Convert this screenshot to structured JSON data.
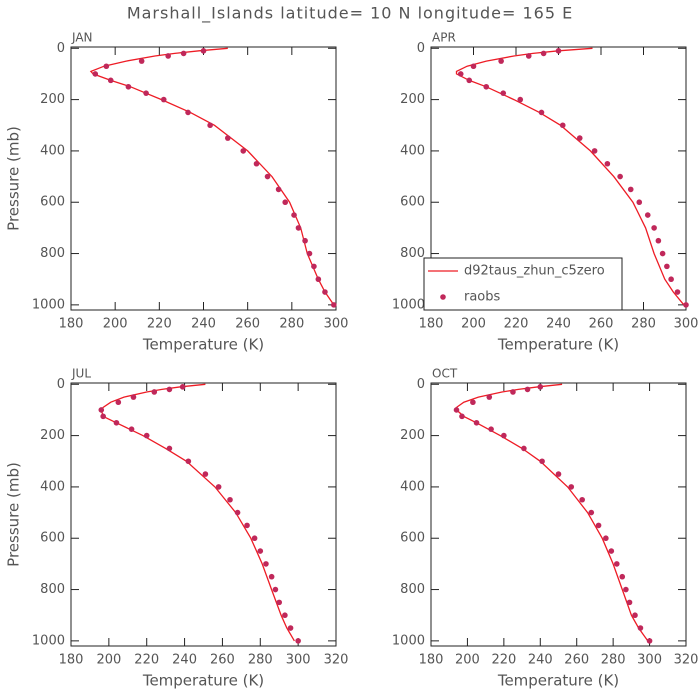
{
  "title": "Marshall_Islands  latitude= 10 N longitude= 165 E",
  "chart_data": [
    {
      "type": "line",
      "panel_label": "JAN",
      "xlabel": "Temperature (K)",
      "ylabel": "Pressure (mb)",
      "xlim": [
        180,
        300
      ],
      "xticks": [
        180,
        200,
        220,
        240,
        260,
        280,
        300
      ],
      "ylim": [
        -5,
        1020
      ],
      "yticks": [
        0,
        200,
        400,
        600,
        800,
        1000
      ],
      "y_reversed": true,
      "series": [
        {
          "mode": "line",
          "color": "#ee1c25",
          "x": [
            251,
            238,
            227,
            218,
            205,
            195,
            189,
            190,
            198,
            207,
            221,
            234,
            245,
            260,
            271,
            279,
            284,
            287,
            292,
            295,
            299
          ],
          "values": [
            0,
            10,
            20,
            30,
            50,
            70,
            90,
            100,
            125,
            150,
            200,
            250,
            300,
            400,
            500,
            600,
            700,
            800,
            900,
            950,
            1000
          ]
        },
        {
          "mode": "markers",
          "color": "#c0285a",
          "x": [
            240,
            231,
            224,
            212,
            196,
            191,
            198,
            206,
            214,
            222,
            233,
            243,
            251,
            258,
            264,
            269,
            274,
            277,
            281,
            283,
            286,
            288,
            290,
            292,
            295,
            299
          ],
          "values": [
            10,
            20,
            30,
            50,
            70,
            100,
            125,
            150,
            175,
            200,
            250,
            300,
            350,
            400,
            450,
            500,
            550,
            600,
            650,
            700,
            750,
            800,
            850,
            900,
            950,
            1000
          ]
        }
      ]
    },
    {
      "type": "line",
      "panel_label": "APR",
      "xlabel": "Temperature (K)",
      "legend": "lower left",
      "xlim": [
        180,
        300
      ],
      "xticks": [
        180,
        200,
        220,
        240,
        260,
        280,
        300
      ],
      "ylim": [
        -5,
        1020
      ],
      "yticks": [
        0,
        200,
        400,
        600,
        800,
        1000
      ],
      "y_reversed": true,
      "series": [
        {
          "name": "d92taus_zhun_c5zero",
          "mode": "line",
          "color": "#ee1c25",
          "x": [
            256,
            240,
            228,
            219,
            206,
            197,
            192,
            192,
            198,
            206,
            219,
            231,
            241,
            255,
            266,
            275,
            281,
            285,
            290,
            294,
            299
          ],
          "values": [
            0,
            10,
            20,
            30,
            50,
            70,
            90,
            100,
            125,
            150,
            200,
            250,
            300,
            400,
            500,
            600,
            700,
            800,
            900,
            950,
            1000
          ]
        },
        {
          "name": "raobs",
          "mode": "markers",
          "color": "#c0285a",
          "x": [
            240,
            233,
            226,
            213,
            200,
            194,
            198,
            206,
            214,
            222,
            232,
            242,
            250,
            257,
            263,
            269,
            274,
            278,
            282,
            285,
            287,
            289,
            291,
            293,
            296,
            300
          ],
          "values": [
            10,
            20,
            30,
            50,
            70,
            100,
            125,
            150,
            175,
            200,
            250,
            300,
            350,
            400,
            450,
            500,
            550,
            600,
            650,
            700,
            750,
            800,
            850,
            900,
            950,
            1000
          ]
        }
      ]
    },
    {
      "type": "line",
      "panel_label": "JUL",
      "xlabel": "Temperature (K)",
      "ylabel": "Pressure (mb)",
      "xlim": [
        180,
        320
      ],
      "xticks": [
        180,
        200,
        220,
        240,
        260,
        280,
        300,
        320
      ],
      "ylim": [
        -5,
        1020
      ],
      "yticks": [
        0,
        200,
        400,
        600,
        800,
        1000
      ],
      "y_reversed": true,
      "series": [
        {
          "mode": "line",
          "color": "#ee1c25",
          "x": [
            251,
            238,
            228,
            220,
            208,
            201,
            197,
            196,
            197,
            204,
            218,
            230,
            241,
            256,
            267,
            275,
            281,
            286,
            291,
            294,
            298
          ],
          "values": [
            0,
            10,
            20,
            30,
            50,
            70,
            90,
            100,
            125,
            150,
            200,
            250,
            300,
            400,
            500,
            600,
            700,
            800,
            900,
            950,
            1000
          ]
        },
        {
          "mode": "markers",
          "color": "#c0285a",
          "x": [
            239,
            232,
            224,
            213,
            205,
            196,
            197,
            204,
            212,
            220,
            232,
            242,
            251,
            258,
            264,
            268,
            273,
            277,
            280,
            283,
            286,
            288,
            290,
            293,
            296,
            300
          ],
          "values": [
            10,
            20,
            30,
            50,
            70,
            100,
            125,
            150,
            175,
            200,
            250,
            300,
            350,
            400,
            450,
            500,
            550,
            600,
            650,
            700,
            750,
            800,
            850,
            900,
            950,
            1000
          ]
        }
      ]
    },
    {
      "type": "line",
      "panel_label": "OCT",
      "xlabel": "Temperature (K)",
      "xlim": [
        180,
        320
      ],
      "xticks": [
        180,
        200,
        220,
        240,
        260,
        280,
        300,
        320
      ],
      "ylim": [
        -5,
        1020
      ],
      "yticks": [
        0,
        200,
        400,
        600,
        800,
        1000
      ],
      "y_reversed": true,
      "series": [
        {
          "mode": "line",
          "color": "#ee1c25",
          "x": [
            252,
            239,
            228,
            219,
            206,
            198,
            194,
            194,
            198,
            205,
            218,
            230,
            240,
            255,
            266,
            274,
            280,
            285,
            290,
            294,
            299
          ],
          "values": [
            0,
            10,
            20,
            30,
            50,
            70,
            90,
            100,
            125,
            150,
            200,
            250,
            300,
            400,
            500,
            600,
            700,
            800,
            900,
            950,
            1000
          ]
        },
        {
          "mode": "markers",
          "color": "#c0285a",
          "x": [
            240,
            233,
            225,
            212,
            203,
            194,
            197,
            205,
            213,
            220,
            231,
            241,
            250,
            257,
            263,
            268,
            272,
            276,
            279,
            282,
            285,
            287,
            289,
            292,
            295,
            300
          ],
          "values": [
            10,
            20,
            30,
            50,
            70,
            100,
            125,
            150,
            175,
            200,
            250,
            300,
            350,
            400,
            450,
            500,
            550,
            600,
            650,
            700,
            750,
            800,
            850,
            900,
            950,
            1000
          ]
        }
      ]
    }
  ]
}
